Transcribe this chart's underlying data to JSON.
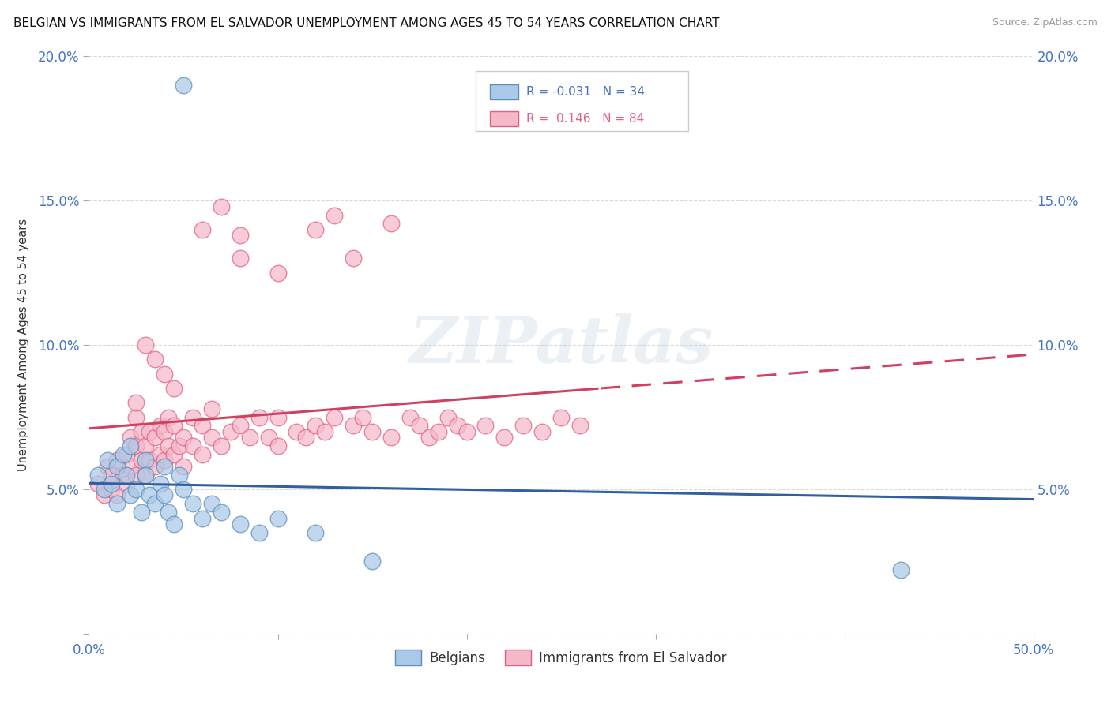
{
  "title": "BELGIAN VS IMMIGRANTS FROM EL SALVADOR UNEMPLOYMENT AMONG AGES 45 TO 54 YEARS CORRELATION CHART",
  "source": "Source: ZipAtlas.com",
  "ylabel": "Unemployment Among Ages 45 to 54 years",
  "xlim": [
    0,
    0.5
  ],
  "ylim": [
    0,
    0.2
  ],
  "xticks": [
    0.0,
    0.1,
    0.2,
    0.3,
    0.4,
    0.5
  ],
  "yticks": [
    0.0,
    0.05,
    0.1,
    0.15,
    0.2
  ],
  "xtick_labels": [
    "0.0%",
    "",
    "",
    "",
    "",
    "50.0%"
  ],
  "ytick_labels": [
    "",
    "5.0%",
    "10.0%",
    "15.0%",
    "20.0%"
  ],
  "right_ytick_labels": [
    "",
    "5.0%",
    "10.0%",
    "15.0%",
    "20.0%"
  ],
  "legend_labels": [
    "Belgians",
    "Immigrants from El Salvador"
  ],
  "belgian_color": "#aac8e8",
  "belgian_edge": "#5b8db8",
  "salvador_color": "#f5b8c8",
  "salvador_edge": "#e06080",
  "trend_belgian_color": "#3060a0",
  "trend_salvador_color": "#d04060",
  "R_belgian": -0.031,
  "N_belgian": 34,
  "R_salvador": 0.146,
  "N_salvador": 84,
  "watermark": "ZIPatlas",
  "background_color": "#ffffff",
  "grid_color": "#d8d8d8",
  "belgian_x": [
    0.005,
    0.008,
    0.01,
    0.012,
    0.015,
    0.015,
    0.018,
    0.02,
    0.022,
    0.022,
    0.025,
    0.028,
    0.03,
    0.03,
    0.032,
    0.035,
    0.038,
    0.04,
    0.04,
    0.042,
    0.045,
    0.048,
    0.05,
    0.055,
    0.06,
    0.065,
    0.07,
    0.08,
    0.09,
    0.1,
    0.12,
    0.15,
    0.43,
    0.05
  ],
  "belgian_y": [
    0.055,
    0.05,
    0.06,
    0.052,
    0.058,
    0.045,
    0.062,
    0.055,
    0.048,
    0.065,
    0.05,
    0.042,
    0.06,
    0.055,
    0.048,
    0.045,
    0.052,
    0.058,
    0.048,
    0.042,
    0.038,
    0.055,
    0.05,
    0.045,
    0.04,
    0.045,
    0.042,
    0.038,
    0.035,
    0.04,
    0.035,
    0.025,
    0.022,
    0.19
  ],
  "salvador_x": [
    0.005,
    0.008,
    0.01,
    0.012,
    0.012,
    0.015,
    0.015,
    0.018,
    0.02,
    0.02,
    0.022,
    0.022,
    0.025,
    0.025,
    0.025,
    0.028,
    0.028,
    0.03,
    0.03,
    0.032,
    0.032,
    0.035,
    0.035,
    0.038,
    0.038,
    0.04,
    0.04,
    0.042,
    0.042,
    0.045,
    0.045,
    0.048,
    0.05,
    0.05,
    0.055,
    0.055,
    0.06,
    0.06,
    0.065,
    0.065,
    0.07,
    0.075,
    0.08,
    0.085,
    0.09,
    0.095,
    0.1,
    0.1,
    0.11,
    0.115,
    0.12,
    0.125,
    0.13,
    0.14,
    0.145,
    0.15,
    0.16,
    0.17,
    0.175,
    0.18,
    0.185,
    0.19,
    0.195,
    0.2,
    0.21,
    0.22,
    0.23,
    0.24,
    0.25,
    0.26,
    0.06,
    0.08,
    0.1,
    0.12,
    0.14,
    0.03,
    0.035,
    0.04,
    0.045,
    0.025,
    0.07,
    0.08,
    0.13,
    0.16
  ],
  "salvador_y": [
    0.052,
    0.048,
    0.058,
    0.05,
    0.055,
    0.06,
    0.048,
    0.055,
    0.052,
    0.062,
    0.058,
    0.068,
    0.055,
    0.065,
    0.075,
    0.06,
    0.07,
    0.055,
    0.065,
    0.06,
    0.07,
    0.058,
    0.068,
    0.062,
    0.072,
    0.06,
    0.07,
    0.065,
    0.075,
    0.062,
    0.072,
    0.065,
    0.058,
    0.068,
    0.065,
    0.075,
    0.062,
    0.072,
    0.068,
    0.078,
    0.065,
    0.07,
    0.072,
    0.068,
    0.075,
    0.068,
    0.065,
    0.075,
    0.07,
    0.068,
    0.072,
    0.07,
    0.075,
    0.072,
    0.075,
    0.07,
    0.068,
    0.075,
    0.072,
    0.068,
    0.07,
    0.075,
    0.072,
    0.07,
    0.072,
    0.068,
    0.072,
    0.07,
    0.075,
    0.072,
    0.14,
    0.13,
    0.125,
    0.14,
    0.13,
    0.1,
    0.095,
    0.09,
    0.085,
    0.08,
    0.148,
    0.138,
    0.145,
    0.142
  ]
}
